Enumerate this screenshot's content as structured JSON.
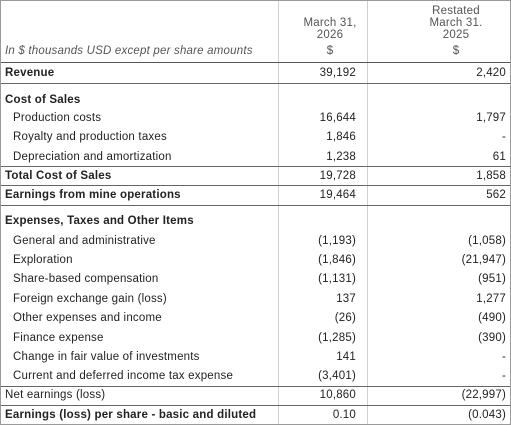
{
  "header": {
    "note": "In $ thousands USD except per share amounts",
    "columns": [
      [
        "March 31,",
        "2026",
        "$"
      ],
      [
        "Restated",
        "March 31.",
        "2025",
        "$"
      ]
    ]
  },
  "table": {
    "rows": [
      [
        "Revenue",
        "39,192",
        "2,420"
      ],
      [
        "Cost of Sales"
      ],
      [
        "Production costs",
        "16,644",
        "1,797"
      ],
      [
        "Royalty and production taxes",
        "1,846",
        "-"
      ],
      [
        "Depreciation and amortization",
        "1,238",
        "61"
      ],
      [
        "Total Cost of Sales",
        "19,728",
        "1,858"
      ],
      [
        "Earnings from mine operations",
        "19,464",
        "562"
      ],
      [
        "Expenses, Taxes and Other Items"
      ],
      [
        "General and administrative",
        "(1,193)",
        "(1,058)"
      ],
      [
        "Exploration",
        "(1,846)",
        "(21,947)"
      ],
      [
        "Share-based compensation",
        "(1,131)",
        "(951)"
      ],
      [
        "Foreign exchange gain (loss)",
        "137",
        "1,277"
      ],
      [
        "Other expenses and income",
        "(26)",
        "(490)"
      ],
      [
        "Finance expense",
        "(1,285)",
        "(390)"
      ],
      [
        "Change in fair value of investments",
        "141",
        "-"
      ],
      [
        "Current and deferred income tax expense",
        "(3,401)",
        "-"
      ],
      [
        "Net earnings (loss)",
        "10,860",
        "(22,997)"
      ],
      [
        "Earnings (loss) per share - basic and diluted",
        "0.10",
        "(0.043)"
      ]
    ]
  }
}
